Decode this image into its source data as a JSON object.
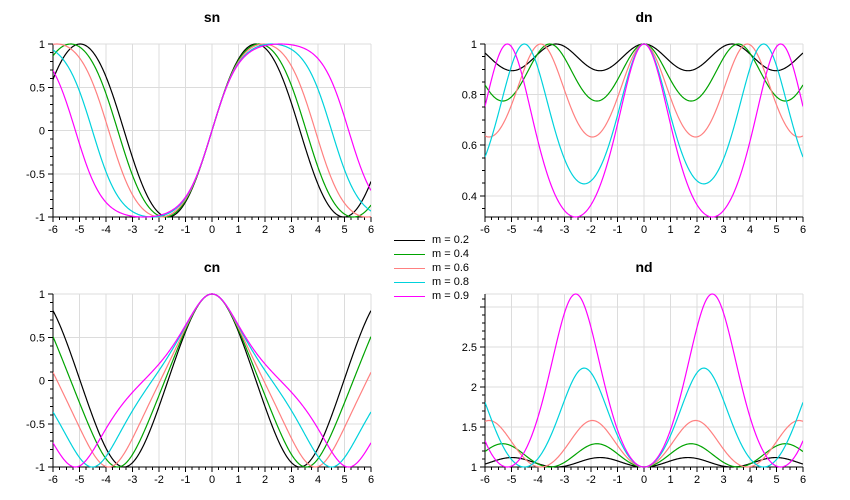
{
  "figure": {
    "background": "#FFFFFF",
    "axis_color": "#000000",
    "grid_color": "#DCDCDC"
  },
  "chart_data": {
    "type": "line",
    "description": "Jacobi elliptic functions sn, dn, cn, nd plotted versus u for five modulus values m",
    "grid": true,
    "samples_per_curve": 481,
    "x": {
      "min": -6,
      "max": 6,
      "major_tick_step": 1,
      "minor_tick_step": 0.25,
      "tick_labels": [
        "-6",
        "-5",
        "-4",
        "-3",
        "-2",
        "-1",
        "0",
        "1",
        "2",
        "3",
        "4",
        "5",
        "6"
      ]
    },
    "series": [
      {
        "label": "m = 0.2",
        "m": 0.2,
        "color": "#000000"
      },
      {
        "label": "m = 0.4",
        "m": 0.4,
        "color": "#00A300"
      },
      {
        "label": "m = 0.6",
        "m": 0.6,
        "color": "#FF8080"
      },
      {
        "label": "m = 0.8",
        "m": 0.8,
        "color": "#00D2DC"
      },
      {
        "label": "m = 0.9",
        "m": 0.9,
        "color": "#FF00FF"
      }
    ],
    "subplots": [
      {
        "id": "sn",
        "title": "sn",
        "function": "sn",
        "y": {
          "min": -1,
          "max": 1,
          "major_ticks": [
            -1,
            -0.5,
            0,
            0.5,
            1
          ],
          "tick_labels": [
            "-1",
            "-0.5",
            "0",
            "0.5",
            "1"
          ],
          "minor_tick_step": 0.1
        }
      },
      {
        "id": "dn",
        "title": "dn",
        "function": "dn",
        "y": {
          "min": 0.3162,
          "max": 1,
          "major_ticks": [
            0.4,
            0.6,
            0.8,
            1
          ],
          "tick_labels": [
            "0.4",
            "0.6",
            "0.8",
            "1"
          ],
          "minor_tick_step": 0.05
        }
      },
      {
        "id": "cn",
        "title": "cn",
        "function": "cn",
        "y": {
          "min": -1,
          "max": 1,
          "major_ticks": [
            -1,
            -0.5,
            0,
            0.5,
            1
          ],
          "tick_labels": [
            "-1",
            "-0.5",
            "0",
            "0.5",
            "1"
          ],
          "minor_tick_step": 0.1
        }
      },
      {
        "id": "nd",
        "title": "nd",
        "function": "nd",
        "y": {
          "min": 1,
          "max": 3.1623,
          "major_ticks": [
            1,
            1.5,
            2,
            2.5,
            3
          ],
          "tick_labels": [
            "1",
            "1.5",
            "2",
            "2.5",
            ""
          ],
          "minor_tick_step": 0.1
        }
      }
    ],
    "legend": {
      "position": "middle-left, between the two plot columns",
      "items": [
        "m = 0.2",
        "m = 0.4",
        "m = 0.6",
        "m = 0.8",
        "m = 0.9"
      ]
    }
  }
}
